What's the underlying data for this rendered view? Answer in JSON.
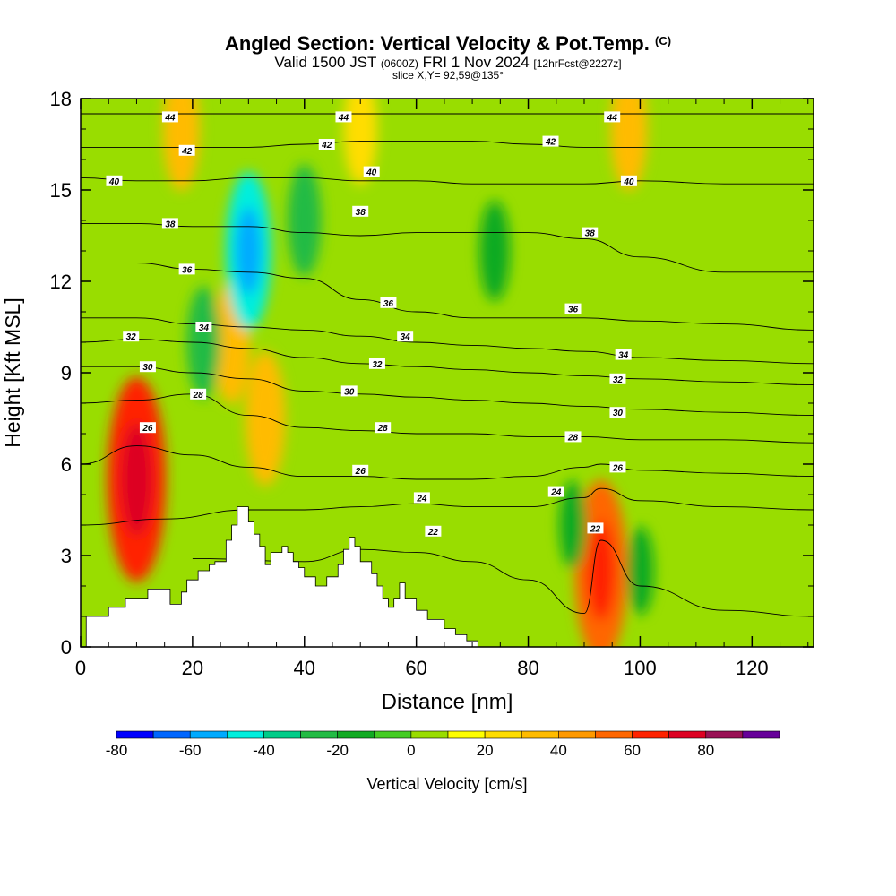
{
  "titles": {
    "main": "Angled Section: Vertical Velocity & Pot.Temp.",
    "copyright": "(C)",
    "valid_prefix": "Valid 1500 JST",
    "valid_zulu": "(0600Z)",
    "valid_date": "FRI 1 Nov 2024",
    "forecast": "[12hrFcst@2227z]",
    "slice": "slice X,Y= 92,59@135°"
  },
  "chart_data": {
    "type": "heatmap",
    "xlabel": "Distance [nm]",
    "ylabel": "Height [Kft MSL]",
    "xlim": [
      0,
      131
    ],
    "ylim": [
      0,
      18
    ],
    "x_ticks": [
      0,
      20,
      40,
      60,
      80,
      100,
      120
    ],
    "y_ticks": [
      0,
      3,
      6,
      9,
      12,
      15,
      18
    ],
    "colorbar": {
      "label": "Vertical Velocity [cm/s]",
      "tick_labels": [
        -80,
        -60,
        -40,
        -20,
        0,
        20,
        40,
        60,
        80
      ],
      "levels": [
        -80,
        -70,
        -60,
        -50,
        -40,
        -30,
        -20,
        -10,
        0,
        10,
        20,
        30,
        40,
        50,
        60,
        70,
        80,
        90
      ],
      "colors": [
        "#0000ff",
        "#0066ff",
        "#00aaff",
        "#00eedd",
        "#00cc88",
        "#22bb44",
        "#11aa22",
        "#44cc22",
        "#99dd00",
        "#ffff00",
        "#ffdd00",
        "#ffbb00",
        "#ff9900",
        "#ff6600",
        "#ff2200",
        "#dd0022",
        "#991155",
        "#660099"
      ]
    },
    "velocity_features": [
      {
        "x": 10,
        "y": 5.5,
        "value": 65
      },
      {
        "x": 27,
        "y": 10,
        "value": 30
      },
      {
        "x": 33,
        "y": 7.5,
        "value": 35
      },
      {
        "x": 93,
        "y": 2.5,
        "value": 55
      },
      {
        "x": 30,
        "y": 13,
        "value": -45
      },
      {
        "x": 22,
        "y": 10,
        "value": -25
      },
      {
        "x": 40,
        "y": 14,
        "value": -25
      },
      {
        "x": 74,
        "y": 13,
        "value": -20
      },
      {
        "x": 88,
        "y": 4,
        "value": -15
      },
      {
        "x": 100,
        "y": 2.5,
        "value": -15
      },
      {
        "x": 18,
        "y": 17,
        "value": 30
      },
      {
        "x": 50,
        "y": 17,
        "value": 25
      },
      {
        "x": 98,
        "y": 17,
        "value": 30
      }
    ],
    "isentropes": [
      {
        "label": "22",
        "x": [
          20,
          40,
          50,
          60,
          70,
          80,
          90,
          93,
          100,
          115,
          131
        ],
        "y": [
          2.9,
          2.8,
          3.2,
          3.1,
          2.8,
          2.2,
          1.1,
          3.5,
          2.0,
          1.2,
          1.0
        ]
      },
      {
        "label": "24",
        "x": [
          0,
          15,
          30,
          40,
          50,
          60,
          70,
          80,
          90,
          93,
          100,
          115,
          131
        ],
        "y": [
          4.0,
          4.2,
          4.5,
          4.5,
          4.6,
          4.7,
          4.6,
          4.6,
          4.9,
          5.2,
          4.8,
          4.6,
          4.5
        ]
      },
      {
        "label": "26",
        "x": [
          0,
          10,
          20,
          30,
          40,
          50,
          60,
          70,
          80,
          90,
          93,
          100,
          115,
          131
        ],
        "y": [
          6.0,
          6.6,
          6.3,
          5.9,
          5.6,
          5.6,
          5.5,
          5.5,
          5.6,
          5.9,
          6.0,
          5.8,
          5.7,
          5.6
        ]
      },
      {
        "label": "28",
        "x": [
          0,
          10,
          20,
          30,
          40,
          50,
          60,
          70,
          80,
          90,
          100,
          115,
          131
        ],
        "y": [
          8.0,
          8.1,
          8.3,
          7.6,
          7.2,
          7.1,
          7.0,
          7.0,
          6.9,
          6.9,
          6.8,
          6.8,
          6.7
        ]
      },
      {
        "label": "30",
        "x": [
          0,
          10,
          20,
          30,
          40,
          50,
          60,
          70,
          80,
          90,
          100,
          115,
          131
        ],
        "y": [
          9.2,
          9.2,
          9.0,
          8.8,
          8.4,
          8.3,
          8.2,
          8.1,
          8.0,
          7.9,
          7.8,
          7.7,
          7.6
        ]
      },
      {
        "label": "32",
        "x": [
          0,
          10,
          20,
          30,
          40,
          50,
          60,
          70,
          80,
          90,
          100,
          115,
          131
        ],
        "y": [
          10.0,
          10.1,
          10.0,
          9.8,
          9.5,
          9.3,
          9.2,
          9.1,
          9.0,
          8.9,
          8.8,
          8.7,
          8.6
        ]
      },
      {
        "label": "34",
        "x": [
          0,
          10,
          20,
          30,
          40,
          50,
          60,
          70,
          80,
          90,
          100,
          115,
          131
        ],
        "y": [
          10.8,
          10.8,
          10.6,
          10.5,
          10.4,
          10.2,
          10.0,
          9.9,
          9.8,
          9.7,
          9.5,
          9.4,
          9.3
        ]
      },
      {
        "label": "36",
        "x": [
          0,
          10,
          20,
          30,
          40,
          50,
          60,
          70,
          80,
          90,
          100,
          115,
          131
        ],
        "y": [
          12.6,
          12.6,
          12.4,
          12.3,
          12.1,
          11.4,
          11.0,
          10.8,
          10.8,
          10.8,
          10.7,
          10.6,
          10.4
        ]
      },
      {
        "label": "38",
        "x": [
          0,
          10,
          20,
          30,
          40,
          50,
          60,
          70,
          80,
          90,
          100,
          115,
          131
        ],
        "y": [
          13.9,
          13.9,
          13.8,
          13.8,
          13.6,
          13.5,
          13.6,
          13.6,
          13.6,
          13.4,
          12.8,
          12.3,
          12.3
        ]
      },
      {
        "label": "40",
        "x": [
          0,
          10,
          20,
          30,
          40,
          50,
          60,
          70,
          80,
          90,
          100,
          115,
          131
        ],
        "y": [
          15.4,
          15.3,
          15.3,
          15.4,
          15.4,
          15.3,
          15.3,
          15.2,
          15.2,
          15.2,
          15.3,
          15.2,
          15.2
        ]
      },
      {
        "label": "42",
        "x": [
          0,
          10,
          20,
          30,
          40,
          50,
          60,
          70,
          80,
          90,
          100,
          115,
          131
        ],
        "y": [
          16.4,
          16.4,
          16.4,
          16.4,
          16.5,
          16.6,
          16.6,
          16.6,
          16.5,
          16.4,
          16.4,
          16.4,
          16.4
        ]
      },
      {
        "label": "44",
        "x": [
          0,
          10,
          20,
          30,
          40,
          50,
          60,
          70,
          80,
          90,
          100,
          115,
          131
        ],
        "y": [
          17.5,
          17.5,
          17.5,
          17.5,
          17.5,
          17.5,
          17.5,
          17.5,
          17.5,
          17.5,
          17.5,
          17.5,
          17.5
        ]
      }
    ],
    "isentrope_labels": [
      {
        "text": "44",
        "x": 16,
        "y": 17.4
      },
      {
        "text": "44",
        "x": 47,
        "y": 17.4
      },
      {
        "text": "44",
        "x": 95,
        "y": 17.4
      },
      {
        "text": "42",
        "x": 19,
        "y": 16.3
      },
      {
        "text": "42",
        "x": 44,
        "y": 16.5
      },
      {
        "text": "42",
        "x": 84,
        "y": 16.6
      },
      {
        "text": "40",
        "x": 6,
        "y": 15.3
      },
      {
        "text": "40",
        "x": 52,
        "y": 15.6
      },
      {
        "text": "40",
        "x": 98,
        "y": 15.3
      },
      {
        "text": "38",
        "x": 16,
        "y": 13.9
      },
      {
        "text": "38",
        "x": 50,
        "y": 14.3
      },
      {
        "text": "38",
        "x": 91,
        "y": 13.6
      },
      {
        "text": "36",
        "x": 19,
        "y": 12.4
      },
      {
        "text": "36",
        "x": 55,
        "y": 11.3
      },
      {
        "text": "36",
        "x": 88,
        "y": 11.1
      },
      {
        "text": "34",
        "x": 22,
        "y": 10.5
      },
      {
        "text": "34",
        "x": 58,
        "y": 10.2
      },
      {
        "text": "34",
        "x": 97,
        "y": 9.6
      },
      {
        "text": "32",
        "x": 9,
        "y": 10.2
      },
      {
        "text": "32",
        "x": 53,
        "y": 9.3
      },
      {
        "text": "32",
        "x": 96,
        "y": 8.8
      },
      {
        "text": "30",
        "x": 12,
        "y": 9.2
      },
      {
        "text": "30",
        "x": 48,
        "y": 8.4
      },
      {
        "text": "30",
        "x": 96,
        "y": 7.7
      },
      {
        "text": "28",
        "x": 21,
        "y": 8.3
      },
      {
        "text": "28",
        "x": 54,
        "y": 7.2
      },
      {
        "text": "28",
        "x": 88,
        "y": 6.9
      },
      {
        "text": "26",
        "x": 12,
        "y": 7.2
      },
      {
        "text": "26",
        "x": 50,
        "y": 5.8
      },
      {
        "text": "26",
        "x": 96,
        "y": 5.9
      },
      {
        "text": "24",
        "x": 61,
        "y": 4.9
      },
      {
        "text": "24",
        "x": 85,
        "y": 5.1
      },
      {
        "text": "22",
        "x": 63,
        "y": 3.8
      },
      {
        "text": "22",
        "x": 92,
        "y": 3.9
      }
    ],
    "terrain": {
      "x": [
        0,
        1,
        1,
        5,
        5,
        8,
        8,
        12,
        12,
        16,
        16,
        18,
        18,
        19,
        19,
        21,
        21,
        23,
        23,
        24,
        24,
        26,
        26,
        27,
        27,
        28,
        28,
        30,
        30,
        31,
        31,
        32,
        32,
        33,
        33,
        34,
        34,
        36,
        36,
        37,
        37,
        38,
        38,
        39,
        39,
        40,
        40,
        42,
        42,
        44,
        44,
        46,
        46,
        47,
        47,
        48,
        48,
        49,
        49,
        50,
        50,
        52,
        52,
        53,
        53,
        54,
        54,
        55,
        55,
        56,
        56,
        57,
        57,
        58,
        58,
        60,
        60,
        62,
        62,
        65,
        65,
        67,
        67,
        69,
        69,
        71,
        71
      ],
      "y": [
        0,
        0,
        1.0,
        1.0,
        1.3,
        1.3,
        1.6,
        1.6,
        1.9,
        1.9,
        1.4,
        1.4,
        1.8,
        1.8,
        2.2,
        2.2,
        2.5,
        2.5,
        2.7,
        2.7,
        2.8,
        2.8,
        3.5,
        3.5,
        4.0,
        4.0,
        4.6,
        4.6,
        4.1,
        4.1,
        3.7,
        3.7,
        3.3,
        3.3,
        2.7,
        2.7,
        3.1,
        3.1,
        3.3,
        3.3,
        3.1,
        3.1,
        2.8,
        2.8,
        2.6,
        2.6,
        2.3,
        2.3,
        2.0,
        2.0,
        2.3,
        2.3,
        2.7,
        2.7,
        3.2,
        3.2,
        3.6,
        3.6,
        3.3,
        3.3,
        2.8,
        2.8,
        2.4,
        2.4,
        2.0,
        2.0,
        1.6,
        1.6,
        1.3,
        1.3,
        1.6,
        1.6,
        2.1,
        2.1,
        1.6,
        1.6,
        1.2,
        1.2,
        0.9,
        0.9,
        0.6,
        0.6,
        0.4,
        0.4,
        0.2,
        0.2,
        0
      ]
    }
  }
}
